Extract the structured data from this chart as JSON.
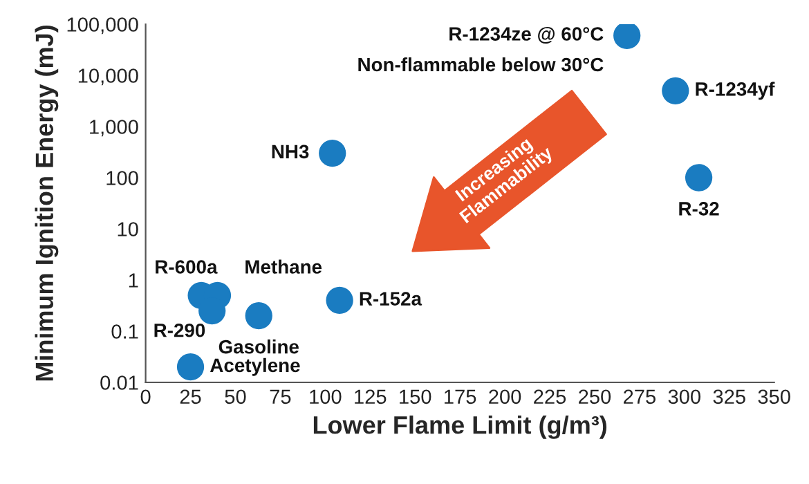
{
  "chart_data": {
    "type": "scatter",
    "xlabel": "Lower Flame Limit (g/m³)",
    "ylabel": "Minimum Ignition Energy (mJ)",
    "log": "y",
    "grid": false,
    "marker": "circle",
    "xlim": [
      0,
      350
    ],
    "xticks": [
      0,
      25,
      50,
      75,
      100,
      125,
      150,
      175,
      200,
      225,
      250,
      275,
      300,
      325,
      350
    ],
    "ylim": [
      0.01,
      100000
    ],
    "yticks": [
      {
        "value": 0.01,
        "label": "0.01"
      },
      {
        "value": 0.1,
        "label": "0.1"
      },
      {
        "value": 1,
        "label": "1"
      },
      {
        "value": 10,
        "label": "10"
      },
      {
        "value": 100,
        "label": "100"
      },
      {
        "value": 1000,
        "label": "1,000"
      },
      {
        "value": 10000,
        "label": "10,000"
      },
      {
        "value": 100000,
        "label": "100,000"
      }
    ],
    "series": [
      {
        "color": "#1a7cc1",
        "x": [
          268,
          295,
          308,
          104,
          31,
          40,
          37,
          63,
          108,
          25
        ],
        "values": [
          60000,
          5000,
          100,
          300,
          0.5,
          0.5,
          0.25,
          0.2,
          0.4,
          0.02
        ]
      }
    ],
    "annotations": [
      {
        "text": "R-1234ze @ 60°C",
        "x": 268,
        "y": 60000
      },
      {
        "text": "Non-flammable below 30°C",
        "x": 268,
        "y": 60000
      },
      {
        "text": "R-1234yf",
        "x": 295,
        "y": 5000
      },
      {
        "text": "R-32",
        "x": 308,
        "y": 100
      },
      {
        "text": "NH3",
        "x": 104,
        "y": 300
      },
      {
        "text": "R-600a",
        "x": 31,
        "y": 0.5
      },
      {
        "text": "Methane",
        "x": 40,
        "y": 0.5
      },
      {
        "text": "R-290",
        "x": 37,
        "y": 0.25
      },
      {
        "text": "Gasoline",
        "x": 63,
        "y": 0.2
      },
      {
        "text": "R-152a",
        "x": 108,
        "y": 0.4
      },
      {
        "text": "Acetylene",
        "x": 25,
        "y": 0.02
      },
      "Increasing\nFlammability"
    ]
  }
}
